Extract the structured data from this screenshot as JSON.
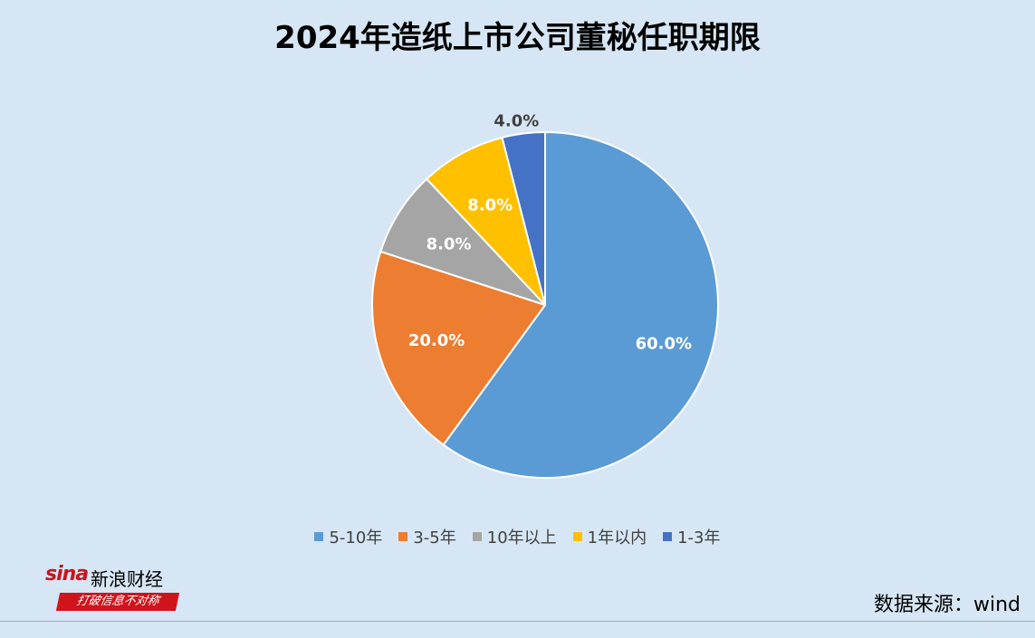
{
  "title": "2024年造纸上市公司董秘任职期限",
  "chart_data": {
    "type": "pie",
    "title": "2024年造纸上市公司董秘任职期限",
    "slices": [
      {
        "label": "5-10年",
        "value": 60.0,
        "display": "60.0%",
        "color": "#5b9bd5"
      },
      {
        "label": "3-5年",
        "value": 20.0,
        "display": "20.0%",
        "color": "#ed7d31"
      },
      {
        "label": "10年以上",
        "value": 8.0,
        "display": "8.0%",
        "color": "#a5a5a5"
      },
      {
        "label": "1年以内",
        "value": 8.0,
        "display": "8.0%",
        "color": "#ffc000"
      },
      {
        "label": "1-3年",
        "value": 4.0,
        "display": "4.0%",
        "color": "#4472c4"
      }
    ],
    "legend_position": "bottom",
    "start": "12 o'clock",
    "direction": "clockwise"
  },
  "logo": {
    "brand": "sina",
    "name": "新浪财经",
    "slogan": "打破信息不对称"
  },
  "source": "数据来源：wind"
}
